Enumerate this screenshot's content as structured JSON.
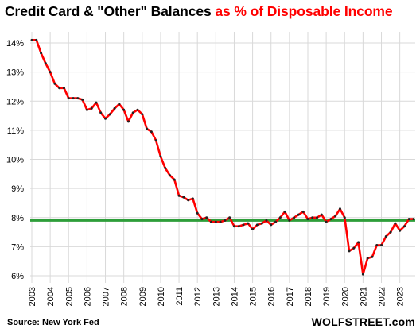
{
  "chart_data": {
    "type": "line",
    "title_part1": "Credit Card & \"Other\" Balances",
    "title_part2": "as % of Disposable Income",
    "source": "Source: New York Fed",
    "brand": "WOLFSTREET.com",
    "ylim": [
      6,
      14.3
    ],
    "xlim": [
      2003.0,
      2023.8
    ],
    "yticks": [
      6,
      7,
      8,
      9,
      10,
      11,
      12,
      13,
      14
    ],
    "ytick_labels": [
      "6%",
      "7%",
      "8%",
      "9%",
      "10%",
      "11%",
      "12%",
      "13%",
      "14%"
    ],
    "xticks": [
      2003,
      2004,
      2005,
      2006,
      2007,
      2008,
      2009,
      2010,
      2011,
      2012,
      2013,
      2014,
      2015,
      2016,
      2017,
      2018,
      2019,
      2020,
      2021,
      2022,
      2023
    ],
    "grid": true,
    "reference_line": 7.9,
    "colors": {
      "series": "#ff0000",
      "markers": "#222222",
      "reference": "#2e9e3a",
      "grid": "#d9d9d9",
      "title_highlight": "#ff0000"
    },
    "series": [
      {
        "x": [
          2003.0,
          2003.25,
          2003.5,
          2003.75,
          2004.0,
          2004.25,
          2004.5,
          2004.75,
          2005.0,
          2005.25,
          2005.5,
          2005.75,
          2006.0,
          2006.25,
          2006.5,
          2006.75,
          2007.0,
          2007.25,
          2007.5,
          2007.75,
          2008.0,
          2008.25,
          2008.5,
          2008.75,
          2009.0,
          2009.25,
          2009.5,
          2009.75,
          2010.0,
          2010.25,
          2010.5,
          2010.75,
          2011.0,
          2011.25,
          2011.5,
          2011.75,
          2012.0,
          2012.25,
          2012.5,
          2012.75,
          2013.0,
          2013.25,
          2013.5,
          2013.75,
          2014.0,
          2014.25,
          2014.5,
          2014.75,
          2015.0,
          2015.25,
          2015.5,
          2015.75,
          2016.0,
          2016.25,
          2016.5,
          2016.75,
          2017.0,
          2017.25,
          2017.5,
          2017.75,
          2018.0,
          2018.25,
          2018.5,
          2018.75,
          2019.0,
          2019.25,
          2019.5,
          2019.75,
          2020.0,
          2020.25,
          2020.5,
          2020.75,
          2021.0,
          2021.25,
          2021.5,
          2021.75,
          2022.0,
          2022.25,
          2022.5,
          2022.75,
          2023.0,
          2023.25,
          2023.5,
          2023.75
        ],
        "values": [
          14.1,
          14.1,
          13.65,
          13.3,
          13.0,
          12.6,
          12.45,
          12.45,
          12.1,
          12.1,
          12.1,
          12.05,
          11.7,
          11.75,
          11.95,
          11.6,
          11.4,
          11.55,
          11.75,
          11.9,
          11.7,
          11.3,
          11.6,
          11.7,
          11.55,
          11.05,
          10.95,
          10.65,
          10.1,
          9.7,
          9.45,
          9.3,
          8.75,
          8.7,
          8.6,
          8.65,
          8.15,
          7.95,
          8.0,
          7.85,
          7.85,
          7.85,
          7.9,
          8.0,
          7.7,
          7.7,
          7.75,
          7.8,
          7.6,
          7.75,
          7.8,
          7.9,
          7.75,
          7.85,
          8.0,
          8.2,
          7.9,
          8.0,
          8.1,
          8.2,
          7.95,
          8.0,
          8.0,
          8.1,
          7.85,
          7.95,
          8.05,
          8.3,
          8.0,
          6.85,
          6.95,
          7.15,
          6.05,
          6.6,
          6.65,
          7.05,
          7.05,
          7.35,
          7.5,
          7.8,
          7.55,
          7.7,
          7.95,
          7.95
        ]
      }
    ]
  }
}
